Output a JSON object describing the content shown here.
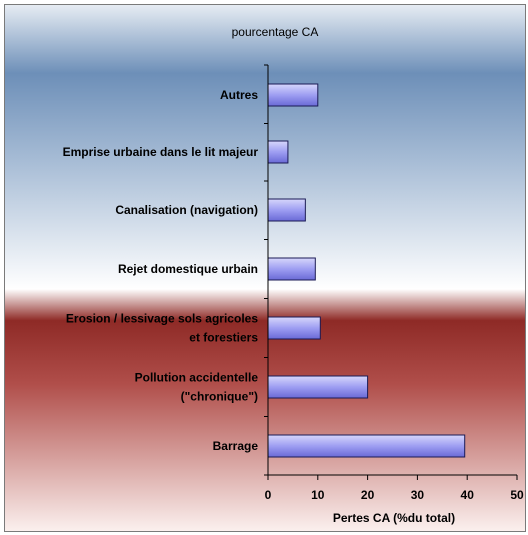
{
  "chart_data": {
    "type": "bar",
    "orientation": "horizontal",
    "title": "pourcentage CA",
    "xlabel": "Pertes CA (%du total)",
    "ylabel": "",
    "xlim": [
      0,
      50
    ],
    "xticks": [
      "0",
      "10",
      "20",
      "30",
      "40",
      "50"
    ],
    "categories": [
      [
        "Autres"
      ],
      [
        "Emprise urbaine dans le lit majeur"
      ],
      [
        "Canalisation (navigation)"
      ],
      [
        "Rejet domestique urbain"
      ],
      [
        "Erosion / lessivage sols agricoles",
        "et forestiers"
      ],
      [
        "Pollution accidentelle",
        "(\"chronique\")"
      ],
      [
        "Barrage"
      ]
    ],
    "values": [
      10,
      4,
      7.5,
      9.5,
      10.5,
      20,
      39.5
    ],
    "grid": false,
    "legend": "none",
    "colors": {
      "bar_fill": "#9e9ef2",
      "bar_stroke": "#1a1a55",
      "bg_top": "#6d8fb8",
      "bg_light": "#ffffff",
      "bg_red": "#8e2a26"
    }
  }
}
